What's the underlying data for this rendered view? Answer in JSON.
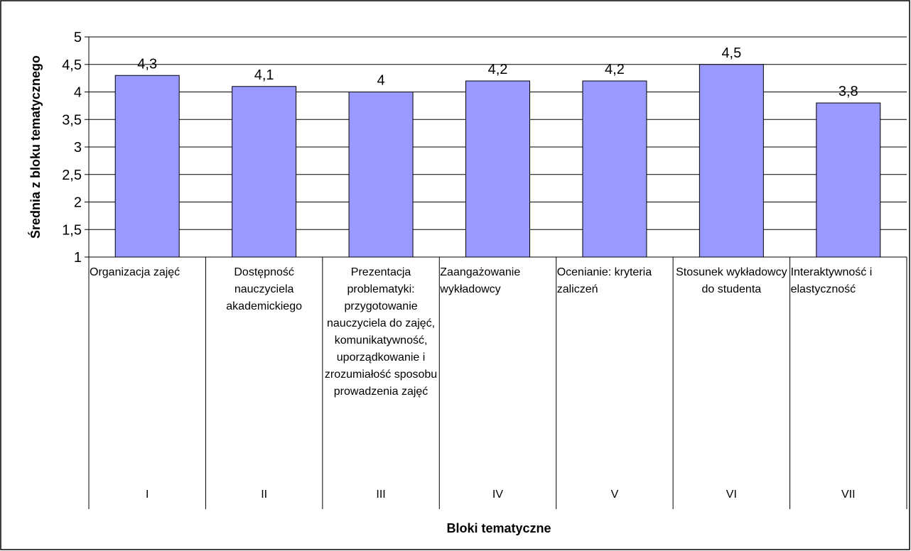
{
  "chart_data": {
    "type": "bar",
    "xlabel": "Bloki tematyczne",
    "ylabel": "Średnia z bloku tematycznego",
    "ylim": [
      1,
      5
    ],
    "ytick_step": 0.5,
    "ytick_labels": [
      "1",
      "1,5",
      "2",
      "2,5",
      "3",
      "3,5",
      "4",
      "4,5",
      "5"
    ],
    "grid": true,
    "legend": "none",
    "bar_color": "#9999ff",
    "categories": [
      {
        "label": "Organizacja zajęć",
        "roman": "I",
        "align": "left"
      },
      {
        "label": "Dostępność nauczyciela akademickiego",
        "roman": "II",
        "align": "center"
      },
      {
        "label": "Prezentacja problematyki: przygotowanie nauczyciela do zajęć, komunikatywność, uporządkowanie i zrozumiałość sposobu prowadzenia zajęć",
        "roman": "III",
        "align": "center"
      },
      {
        "label": "Zaangażowanie wykładowcy",
        "roman": "IV",
        "align": "left"
      },
      {
        "label": "Ocenianie: kryteria zaliczeń",
        "roman": "V",
        "align": "left"
      },
      {
        "label": "Stosunek wykładowcy do studenta",
        "roman": "VI",
        "align": "center"
      },
      {
        "label": "Interaktywność i elastyczność",
        "roman": "VII",
        "align": "left"
      }
    ],
    "values": [
      4.3,
      4.1,
      4.0,
      4.2,
      4.2,
      4.5,
      3.8
    ],
    "value_labels": [
      "4,3",
      "4,1",
      "4",
      "4,2",
      "4,2",
      "4,5",
      "3,8"
    ]
  }
}
